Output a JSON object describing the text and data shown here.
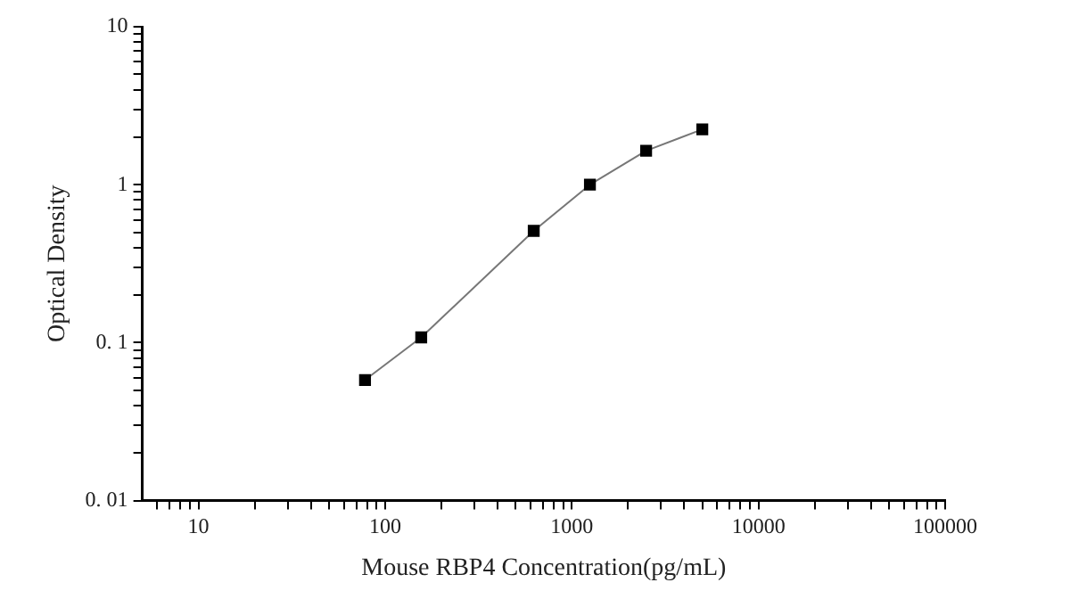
{
  "chart_data": {
    "type": "line",
    "xlabel": "Mouse RBP4 Concentration(pg/mL)",
    "ylabel": "Optical Density",
    "log": "xy",
    "grid": false,
    "marker": "square",
    "line_style": "solid",
    "xlim": [
      5,
      100000
    ],
    "xticks": [
      {
        "value": 6,
        "label": null
      },
      {
        "value": 7,
        "label": null
      },
      {
        "value": 8,
        "label": null
      },
      {
        "value": 9,
        "label": null
      },
      10,
      {
        "value": 20,
        "label": null
      },
      {
        "value": 30,
        "label": null
      },
      {
        "value": 40,
        "label": null
      },
      {
        "value": 50,
        "label": null
      },
      {
        "value": 60,
        "label": null
      },
      {
        "value": 70,
        "label": null
      },
      {
        "value": 80,
        "label": null
      },
      {
        "value": 90,
        "label": null
      },
      100,
      {
        "value": 200,
        "label": null
      },
      {
        "value": 300,
        "label": null
      },
      {
        "value": 400,
        "label": null
      },
      {
        "value": 500,
        "label": null
      },
      {
        "value": 600,
        "label": null
      },
      {
        "value": 700,
        "label": null
      },
      {
        "value": 800,
        "label": null
      },
      {
        "value": 900,
        "label": null
      },
      1000,
      {
        "value": 2000,
        "label": null
      },
      {
        "value": 3000,
        "label": null
      },
      {
        "value": 4000,
        "label": null
      },
      {
        "value": 5000,
        "label": null
      },
      {
        "value": 6000,
        "label": null
      },
      {
        "value": 7000,
        "label": null
      },
      {
        "value": 8000,
        "label": null
      },
      {
        "value": 9000,
        "label": null
      },
      10000,
      {
        "value": 20000,
        "label": null
      },
      {
        "value": 30000,
        "label": null
      },
      {
        "value": 40000,
        "label": null
      },
      {
        "value": 50000,
        "label": null
      },
      {
        "value": 60000,
        "label": null
      },
      {
        "value": 70000,
        "label": null
      },
      {
        "value": 80000,
        "label": null
      },
      {
        "value": 90000,
        "label": null
      },
      100000
    ],
    "ylim": [
      0.01,
      10
    ],
    "yticks": [
      {
        "value": 0.01,
        "label": "0. 01"
      },
      {
        "value": 0.02,
        "label": null
      },
      {
        "value": 0.03,
        "label": null
      },
      {
        "value": 0.04,
        "label": null
      },
      {
        "value": 0.05,
        "label": null
      },
      {
        "value": 0.06,
        "label": null
      },
      {
        "value": 0.07,
        "label": null
      },
      {
        "value": 0.08,
        "label": null
      },
      {
        "value": 0.09,
        "label": null
      },
      {
        "value": 0.1,
        "label": "0. 1"
      },
      {
        "value": 0.2,
        "label": null
      },
      {
        "value": 0.3,
        "label": null
      },
      {
        "value": 0.4,
        "label": null
      },
      {
        "value": 0.5,
        "label": null
      },
      {
        "value": 0.6,
        "label": null
      },
      {
        "value": 0.7,
        "label": null
      },
      {
        "value": 0.8,
        "label": null
      },
      {
        "value": 0.9,
        "label": null
      },
      1,
      {
        "value": 2,
        "label": null
      },
      {
        "value": 3,
        "label": null
      },
      {
        "value": 4,
        "label": null
      },
      {
        "value": 5,
        "label": null
      },
      {
        "value": 6,
        "label": null
      },
      {
        "value": 7,
        "label": null
      },
      {
        "value": 8,
        "label": null
      },
      {
        "value": 9,
        "label": null
      },
      10
    ],
    "series": [
      {
        "color": "#000000",
        "x": [
          78,
          156,
          625,
          1250,
          2500,
          5000
        ],
        "values": [
          0.058,
          0.108,
          0.51,
          1.0,
          1.64,
          2.24
        ]
      }
    ]
  }
}
